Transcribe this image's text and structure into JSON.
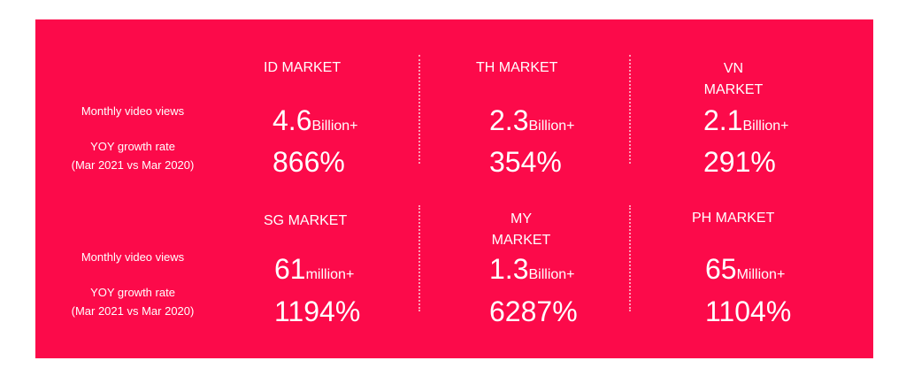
{
  "sections": [
    {
      "labels": {
        "views": "Monthly video views",
        "growth": "YOY growth rate",
        "period": "(Mar 2021 vs Mar 2020)"
      },
      "markets": [
        {
          "name": "ID MARKET",
          "views": "4.6",
          "unit": "Billion+",
          "growth": "866%"
        },
        {
          "name": "TH MARKET",
          "views": "2.3",
          "unit": "Billion+",
          "growth": "354%"
        },
        {
          "name": "VN MARKET",
          "views": "2.1",
          "unit": "Billion+",
          "growth": "291%"
        }
      ]
    },
    {
      "labels": {
        "views": "Monthly video views",
        "growth": "YOY growth rate",
        "period": "(Mar 2021 vs Mar 2020)"
      },
      "markets": [
        {
          "name": "SG MARKET",
          "views": "61",
          "unit": "million+",
          "growth": "1194%"
        },
        {
          "name": "MY MARKET",
          "views": "1.3",
          "unit": "Billion+",
          "growth": "6287%"
        },
        {
          "name": "PH MARKET",
          "views": "65",
          "unit": "Million+",
          "growth": "1104%"
        }
      ]
    }
  ]
}
